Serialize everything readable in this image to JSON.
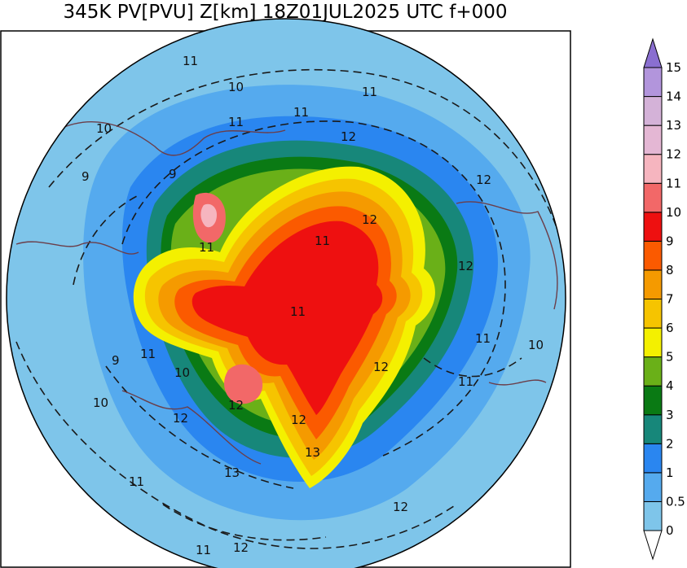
{
  "title": "345K PV[PVU] Z[km] 18Z01JUL2025 UTC f+000",
  "colorbar": {
    "levels": [
      {
        "label": "0",
        "color": "#ffffff"
      },
      {
        "label": "0.5",
        "color": "#7ec5ea"
      },
      {
        "label": "1",
        "color": "#55aaee"
      },
      {
        "label": "2",
        "color": "#2a86f0"
      },
      {
        "label": "3",
        "color": "#17877a"
      },
      {
        "label": "4",
        "color": "#0a7a14"
      },
      {
        "label": "5",
        "color": "#6ab018"
      },
      {
        "label": "6",
        "color": "#f4f000"
      },
      {
        "label": "7",
        "color": "#f6c400"
      },
      {
        "label": "8",
        "color": "#f59a00"
      },
      {
        "label": "9",
        "color": "#fb5a00"
      },
      {
        "label": "10",
        "color": "#ee1010"
      },
      {
        "label": "11",
        "color": "#f26868"
      },
      {
        "label": "12",
        "color": "#f6b5bf"
      },
      {
        "label": "13",
        "color": "#e4b7d4"
      },
      {
        "label": "14",
        "color": "#d4b2d8"
      },
      {
        "label": "15",
        "color": "#b295dc"
      }
    ],
    "extend_color": "#8a6fd0"
  },
  "contour_labels": [
    "11",
    "10",
    "10",
    "9",
    "9",
    "11",
    "11",
    "12",
    "12",
    "12",
    "12",
    "11",
    "11",
    "11",
    "11",
    "11",
    "10",
    "9",
    "10",
    "12",
    "12",
    "12",
    "13",
    "13",
    "11",
    "11",
    "11",
    "12",
    "10",
    "11",
    "12"
  ]
}
